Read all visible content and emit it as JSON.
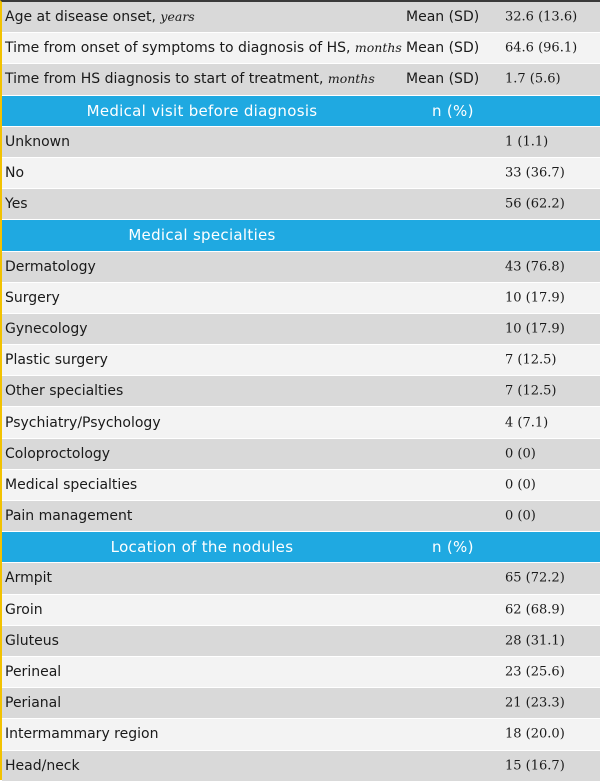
{
  "rows": [
    {
      "type": "data",
      "label": "Age at disease onset, ",
      "unit": "years",
      "stat": "Mean (SD)",
      "value": "32.6 (13.6)"
    },
    {
      "type": "data",
      "label": "Time from onset of symptoms to diagnosis of HS, ",
      "unit": "months",
      "stat": "Mean (SD)",
      "value": "64.6 (96.1)"
    },
    {
      "type": "data",
      "label": "Time from HS diagnosis to start of treatment, ",
      "unit": "months",
      "stat": "Mean (SD)",
      "value": "1.7 (5.6)"
    },
    {
      "type": "header",
      "label": "Medical visit before diagnosis",
      "stat": "n (%)"
    },
    {
      "type": "data",
      "label": "Unknown",
      "value": "1 (1.1)"
    },
    {
      "type": "data",
      "label": "No",
      "value": "33 (36.7)"
    },
    {
      "type": "data",
      "label": "Yes",
      "value": "56 (62.2)"
    },
    {
      "type": "header",
      "label": "Medical specialties",
      "stat": ""
    },
    {
      "type": "data",
      "label": "Dermatology",
      "value": "43 (76.8)"
    },
    {
      "type": "data",
      "label": "Surgery",
      "value": "10 (17.9)"
    },
    {
      "type": "data",
      "label": "Gynecology",
      "value": "10 (17.9)"
    },
    {
      "type": "data",
      "label": "Plastic surgery",
      "value": "7 (12.5)"
    },
    {
      "type": "data",
      "label": "Other specialties",
      "value": "7 (12.5)"
    },
    {
      "type": "data",
      "label": "Psychiatry/Psychology",
      "value": "4 (7.1)"
    },
    {
      "type": "data",
      "label": "Coloproctology",
      "value": "0 (0)"
    },
    {
      "type": "data",
      "label": "Medical specialties",
      "value": "0 (0)"
    },
    {
      "type": "data",
      "label": "Pain management",
      "value": "0 (0)"
    },
    {
      "type": "header",
      "label": "Location of the nodules",
      "stat": "n (%)"
    },
    {
      "type": "data",
      "label": "Armpit",
      "value": "65 (72.2)"
    },
    {
      "type": "data",
      "label": "Groin",
      "value": "62 (68.9)"
    },
    {
      "type": "data",
      "label": "Gluteus",
      "value": "28 (31.1)"
    },
    {
      "type": "data",
      "label": "Perineal",
      "value": "23 (25.6)"
    },
    {
      "type": "data",
      "label": "Perianal",
      "value": "21 (23.3)"
    },
    {
      "type": "data",
      "label": "Intermammary region",
      "value": "18 (20.0)"
    },
    {
      "type": "data",
      "label": "Head/neck",
      "value": "15 (16.7)"
    }
  ],
  "colors": {
    "header": "#1fa9e1",
    "row_dark": "#d9d9d9",
    "row_light": "#f3f3f3",
    "left_border": "#f2c200"
  }
}
